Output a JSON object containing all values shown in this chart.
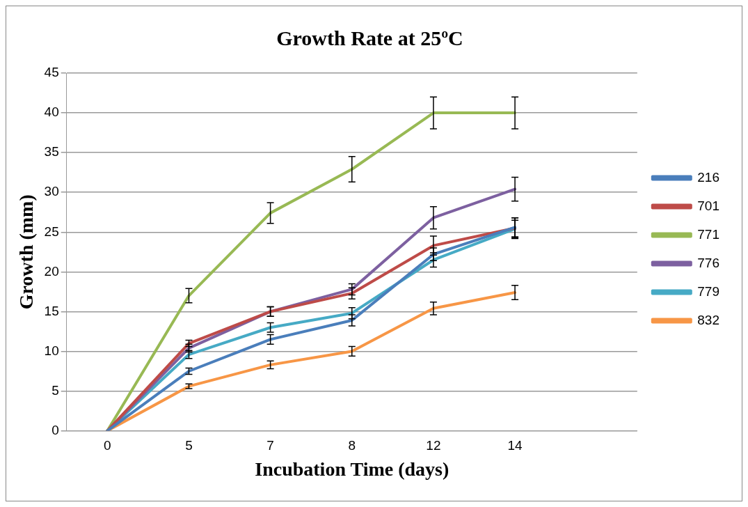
{
  "chart_data": {
    "type": "line",
    "title": "Growth Rate at 25ºC",
    "xlabel": "Incubation Time (days)",
    "ylabel": "Growth (mm)",
    "categories": [
      "0",
      "5",
      "7",
      "8",
      "12",
      "14",
      null
    ],
    "ylim": [
      0,
      45
    ],
    "yticks": [
      0,
      5,
      10,
      15,
      20,
      25,
      30,
      35,
      40,
      45
    ],
    "grid": "y",
    "legend": "right",
    "line_style": "solid",
    "series": [
      {
        "name": "216",
        "color": "#4a7ebb",
        "values": [
          0,
          7.5,
          11.5,
          13.9,
          22.2,
          25.6,
          null
        ],
        "errors": [
          null,
          0.4,
          0.6,
          0.7,
          0.8,
          1.2,
          null
        ]
      },
      {
        "name": "701",
        "color": "#be4b48",
        "values": [
          0,
          11,
          15,
          17.3,
          23.3,
          25.5,
          null
        ],
        "errors": [
          null,
          0.4,
          0.6,
          0.7,
          1.2,
          1.3,
          null
        ]
      },
      {
        "name": "771",
        "color": "#98b954",
        "values": [
          0,
          17,
          27.4,
          32.9,
          40,
          40,
          null
        ],
        "errors": [
          null,
          0.9,
          1.3,
          1.6,
          2,
          2,
          null
        ]
      },
      {
        "name": "776",
        "color": "#7d60a0",
        "values": [
          0,
          10.4,
          15,
          17.8,
          26.8,
          30.4,
          null
        ],
        "errors": [
          null,
          0.5,
          0.6,
          0.7,
          1.4,
          1.5,
          null
        ]
      },
      {
        "name": "779",
        "color": "#46aac5",
        "values": [
          0,
          9.6,
          13,
          14.8,
          21.5,
          25.4,
          null
        ],
        "errors": [
          null,
          0.5,
          0.6,
          0.7,
          0.9,
          1.1,
          null
        ]
      },
      {
        "name": "832",
        "color": "#f79646",
        "values": [
          0,
          5.6,
          8.3,
          10,
          15.4,
          17.4,
          null
        ],
        "errors": [
          null,
          0.3,
          0.5,
          0.6,
          0.8,
          0.9,
          null
        ]
      }
    ]
  }
}
